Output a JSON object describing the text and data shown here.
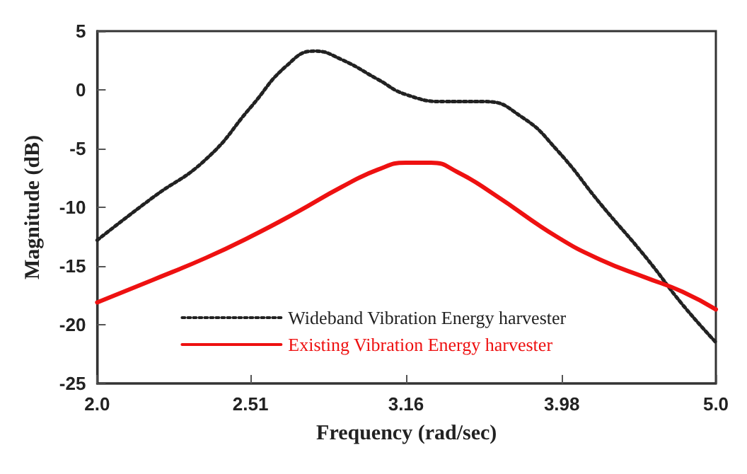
{
  "chart_data": {
    "type": "line",
    "xlabel": "Frequency (rad/sec)",
    "ylabel": "Magnitude (dB)",
    "log": "x",
    "xlim": [
      2,
      5
    ],
    "xticks": [
      {
        "value": 2,
        "label": "2.0"
      },
      2.51,
      3.16,
      3.98,
      {
        "value": 5,
        "label": "5.0"
      }
    ],
    "ylim": [
      -25,
      5
    ],
    "yticks": [
      -25,
      -20,
      -15,
      -10,
      -5,
      0,
      5
    ],
    "grid": false,
    "legend": "bottom",
    "marker": "none",
    "series": [
      {
        "name": "Wideband Vibration Energy harvester",
        "color": "#222222",
        "line_style": "dotted",
        "x": [
          2.0,
          2.17,
          2.35,
          2.51,
          2.65,
          2.76,
          2.87,
          3.03,
          3.16,
          3.35,
          3.55,
          3.75,
          3.95,
          4.22,
          4.51,
          4.76,
          5.0
        ],
        "values": [
          -12.8,
          -9.2,
          -5.9,
          -1.5,
          2.1,
          3.3,
          2.6,
          0.9,
          -0.4,
          -1.0,
          -1.0,
          -2.3,
          -5.1,
          -9.8,
          -14.3,
          -18.3,
          -21.5
        ]
      },
      {
        "name": "Existing Vibration Energy harvester",
        "color": "#ee1111",
        "line_style": "solid",
        "x": [
          2.0,
          2.17,
          2.35,
          2.51,
          2.69,
          2.87,
          3.03,
          3.16,
          3.28,
          3.41,
          3.6,
          3.95,
          4.22,
          4.51,
          4.76,
          5.0
        ],
        "values": [
          -18.1,
          -16.2,
          -14.3,
          -12.5,
          -10.4,
          -8.3,
          -6.8,
          -6.2,
          -6.2,
          -7.0,
          -8.9,
          -12.5,
          -14.5,
          -16.0,
          -17.2,
          -18.7
        ]
      }
    ]
  }
}
